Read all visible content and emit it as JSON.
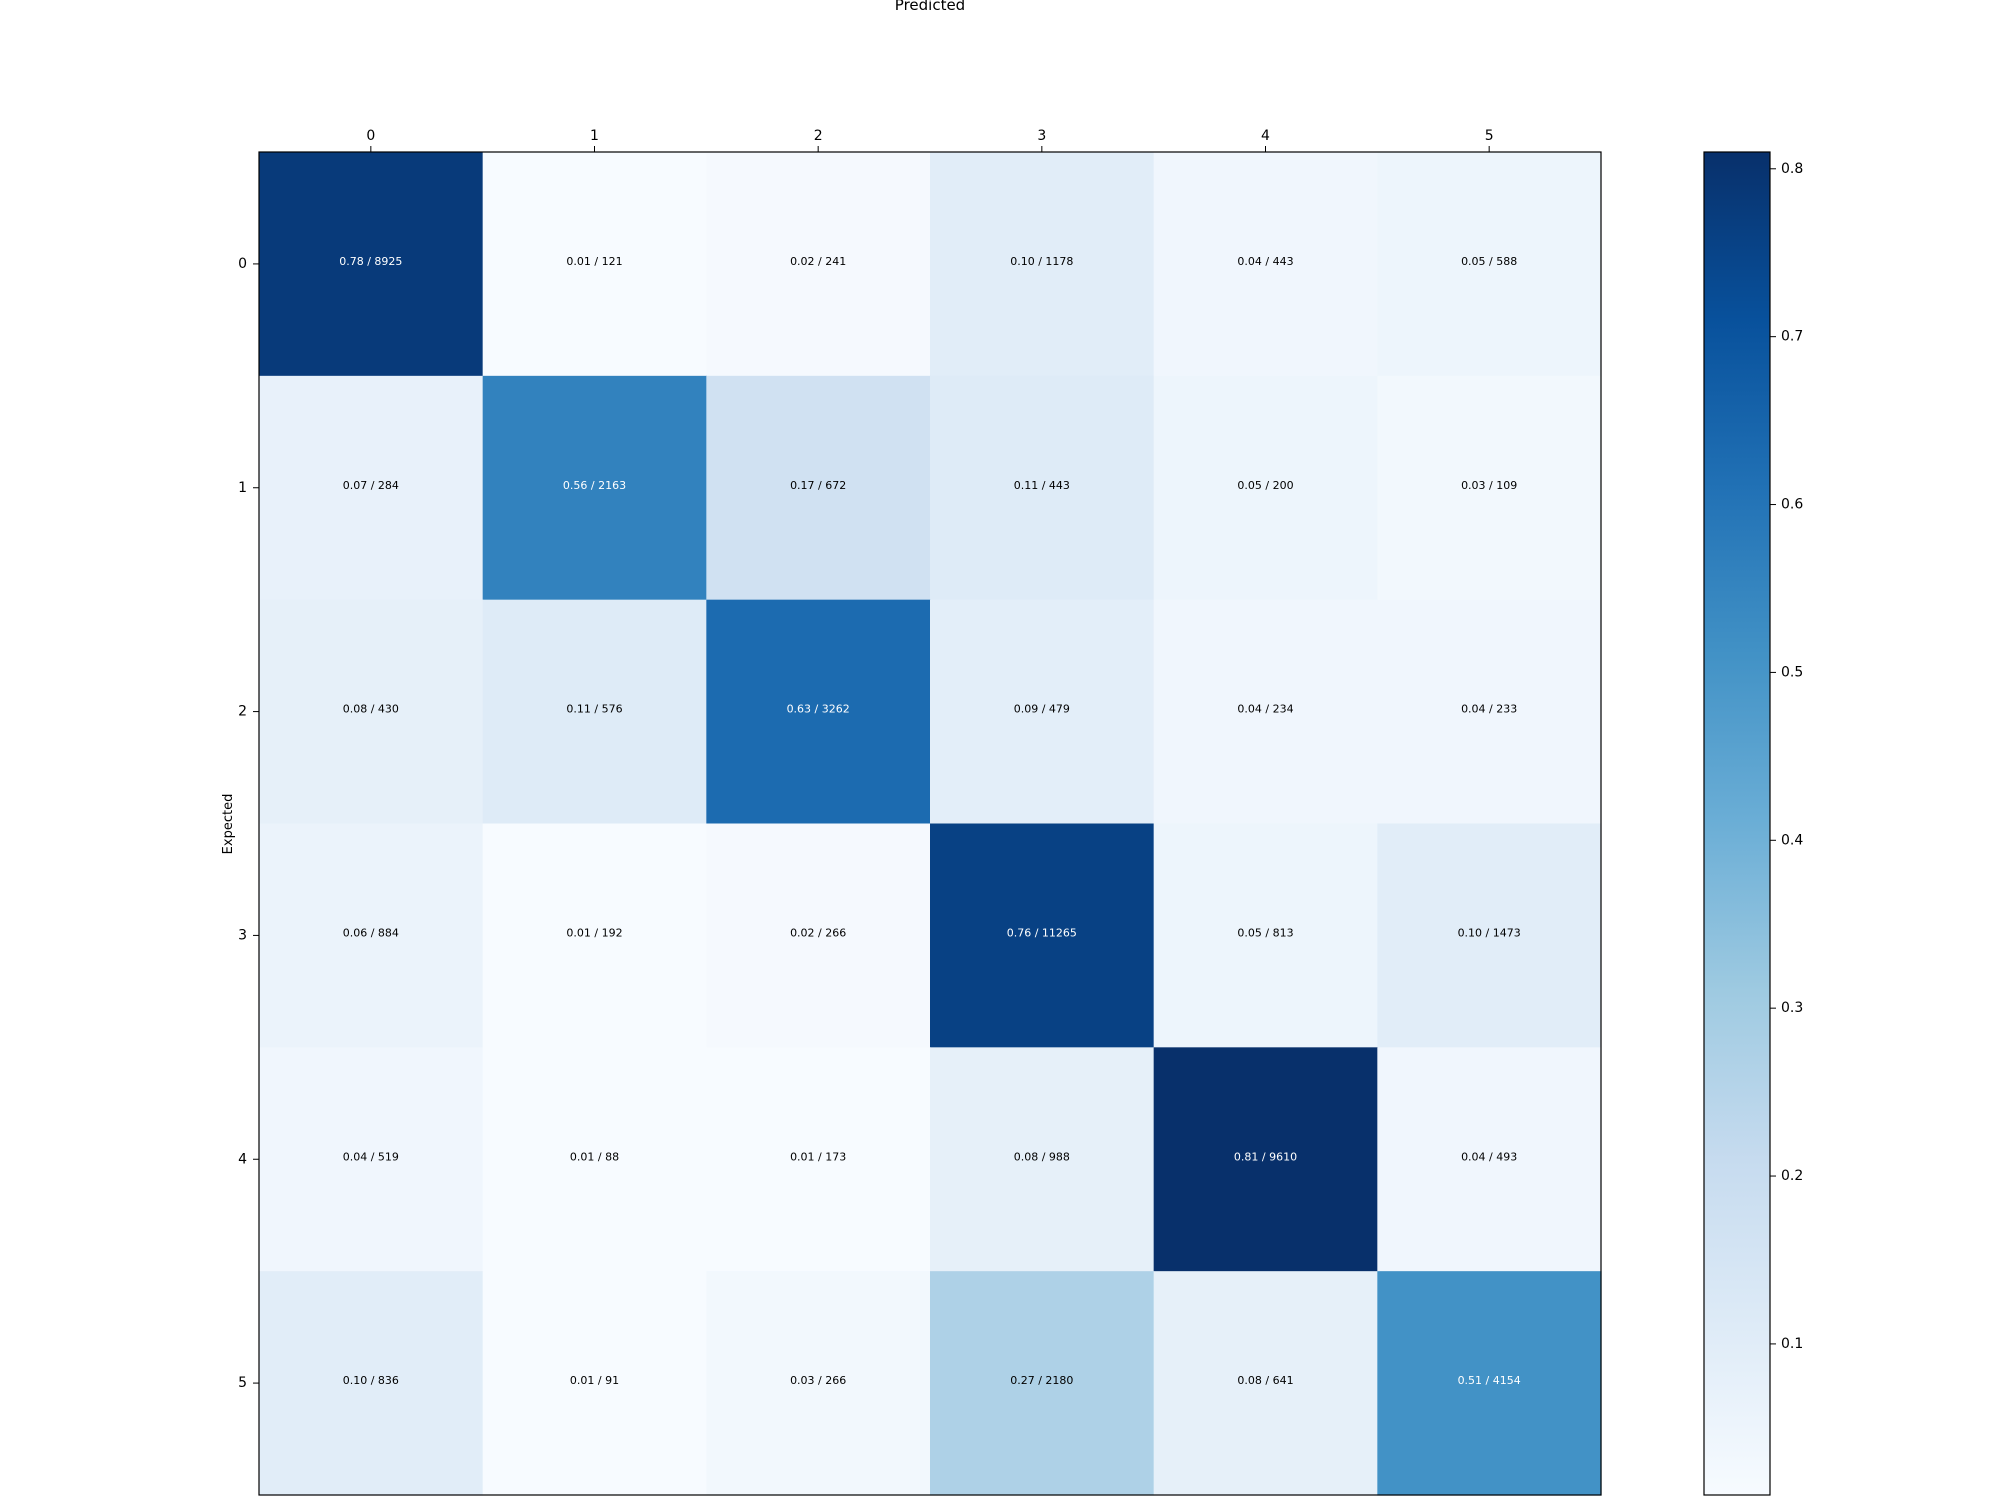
{
  "chart_data": {
    "type": "heatmap",
    "xlabel": "Predicted",
    "ylabel": "Expected",
    "x_categories": [
      "0",
      "1",
      "2",
      "3",
      "4",
      "5"
    ],
    "y_categories": [
      "0",
      "1",
      "2",
      "3",
      "4",
      "5"
    ],
    "grid": false,
    "colormap": "Blues",
    "colorbar": {
      "range": [
        0.01,
        0.81
      ],
      "ticks": [
        "0.1",
        "0.2",
        "0.3",
        "0.4",
        "0.5",
        "0.6",
        "0.7",
        "0.8"
      ],
      "placement": "right"
    },
    "cells": [
      [
        {
          "value": 0.78,
          "count": 8925
        },
        {
          "value": 0.01,
          "count": 121
        },
        {
          "value": 0.02,
          "count": 241
        },
        {
          "value": 0.1,
          "count": 1178
        },
        {
          "value": 0.04,
          "count": 443
        },
        {
          "value": 0.05,
          "count": 588
        }
      ],
      [
        {
          "value": 0.07,
          "count": 284
        },
        {
          "value": 0.56,
          "count": 2163
        },
        {
          "value": 0.17,
          "count": 672
        },
        {
          "value": 0.11,
          "count": 443
        },
        {
          "value": 0.05,
          "count": 200
        },
        {
          "value": 0.03,
          "count": 109
        }
      ],
      [
        {
          "value": 0.08,
          "count": 430
        },
        {
          "value": 0.11,
          "count": 576
        },
        {
          "value": 0.63,
          "count": 3262
        },
        {
          "value": 0.09,
          "count": 479
        },
        {
          "value": 0.04,
          "count": 234
        },
        {
          "value": 0.04,
          "count": 233
        }
      ],
      [
        {
          "value": 0.06,
          "count": 884
        },
        {
          "value": 0.01,
          "count": 192
        },
        {
          "value": 0.02,
          "count": 266
        },
        {
          "value": 0.76,
          "count": 11265
        },
        {
          "value": 0.05,
          "count": 813
        },
        {
          "value": 0.1,
          "count": 1473
        }
      ],
      [
        {
          "value": 0.04,
          "count": 519
        },
        {
          "value": 0.01,
          "count": 88
        },
        {
          "value": 0.01,
          "count": 173
        },
        {
          "value": 0.08,
          "count": 988
        },
        {
          "value": 0.81,
          "count": 9610
        },
        {
          "value": 0.04,
          "count": 493
        }
      ],
      [
        {
          "value": 0.1,
          "count": 836
        },
        {
          "value": 0.01,
          "count": 91
        },
        {
          "value": 0.03,
          "count": 266
        },
        {
          "value": 0.27,
          "count": 2180
        },
        {
          "value": 0.08,
          "count": 641
        },
        {
          "value": 0.51,
          "count": 4154
        }
      ]
    ]
  }
}
